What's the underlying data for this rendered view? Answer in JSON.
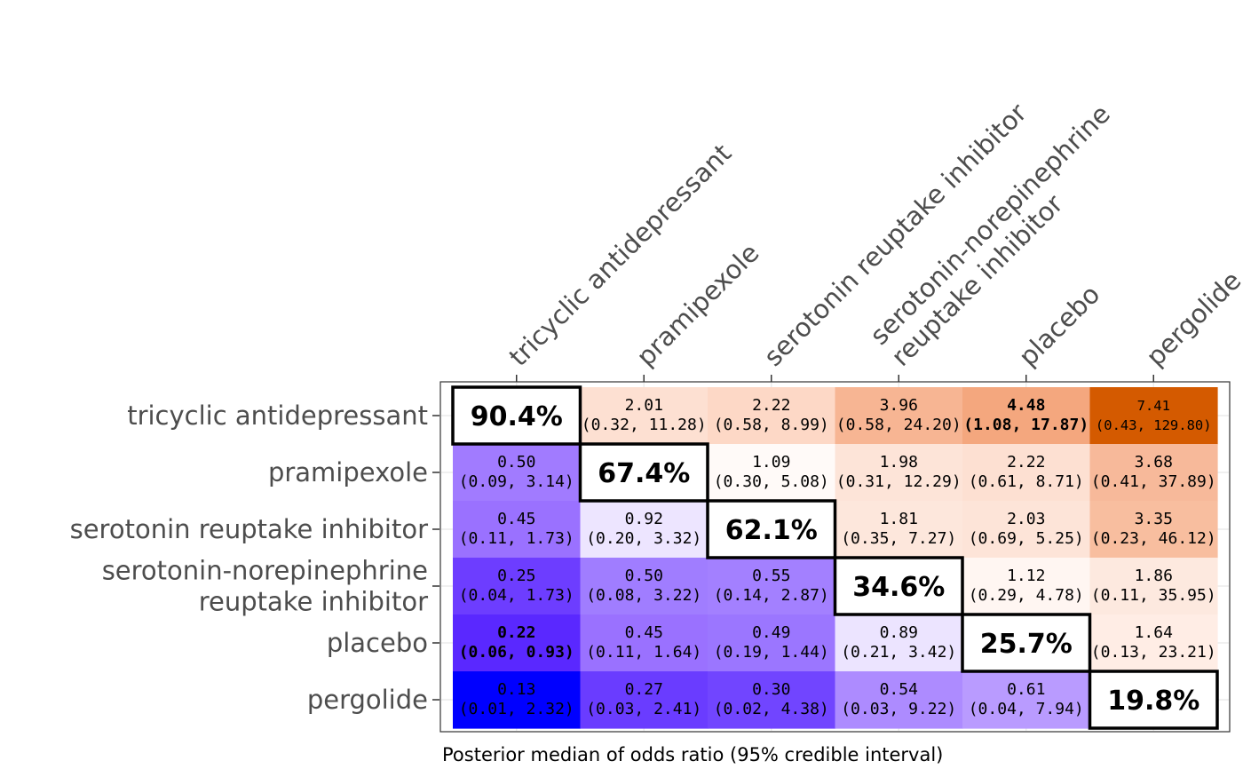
{
  "chart_data": {
    "type": "heatmap",
    "caption": "Posterior median of odds ratio (95% credible interval)",
    "columns": [
      [
        "tricyclic antidepressant"
      ],
      [
        "pramipexole"
      ],
      [
        "serotonin reuptake inhibitor"
      ],
      [
        "serotonin-norepinephrine",
        "reuptake inhibitor"
      ],
      [
        "placebo"
      ],
      [
        "pergolide"
      ]
    ],
    "rows": [
      [
        "tricyclic antidepressant"
      ],
      [
        "pramipexole"
      ],
      [
        "serotonin reuptake inhibitor"
      ],
      [
        "serotonin-norepinephrine",
        "reuptake inhibitor"
      ],
      [
        "placebo"
      ],
      [
        "pergolide"
      ]
    ],
    "diagonal": [
      "90.4%",
      "67.4%",
      "62.1%",
      "34.6%",
      "25.7%",
      "19.8%"
    ],
    "cells": [
      [
        null,
        {
          "median": "2.01",
          "ci": "(0.32, 11.28)"
        },
        {
          "median": "2.22",
          "ci": "(0.58, 8.99)"
        },
        {
          "median": "3.96",
          "ci": "(0.58, 24.20)"
        },
        {
          "median": "4.48",
          "ci": "(1.08, 17.87)",
          "bold": true
        },
        {
          "median": "7.41",
          "ci": "(0.43, 129.80)"
        }
      ],
      [
        {
          "median": "0.50",
          "ci": "(0.09, 3.14)"
        },
        null,
        {
          "median": "1.09",
          "ci": "(0.30, 5.08)"
        },
        {
          "median": "1.98",
          "ci": "(0.31, 12.29)"
        },
        {
          "median": "2.22",
          "ci": "(0.61, 8.71)"
        },
        {
          "median": "3.68",
          "ci": "(0.41, 37.89)"
        }
      ],
      [
        {
          "median": "0.45",
          "ci": "(0.11, 1.73)"
        },
        {
          "median": "0.92",
          "ci": "(0.20, 3.32)"
        },
        null,
        {
          "median": "1.81",
          "ci": "(0.35, 7.27)"
        },
        {
          "median": "2.03",
          "ci": "(0.69, 5.25)"
        },
        {
          "median": "3.35",
          "ci": "(0.23, 46.12)"
        }
      ],
      [
        {
          "median": "0.25",
          "ci": "(0.04, 1.73)"
        },
        {
          "median": "0.50",
          "ci": "(0.08, 3.22)"
        },
        {
          "median": "0.55",
          "ci": "(0.14, 2.87)"
        },
        null,
        {
          "median": "1.12",
          "ci": "(0.29, 4.78)"
        },
        {
          "median": "1.86",
          "ci": "(0.11, 35.95)"
        }
      ],
      [
        {
          "median": "0.22",
          "ci": "(0.06, 0.93)",
          "bold": true
        },
        {
          "median": "0.45",
          "ci": "(0.11, 1.64)"
        },
        {
          "median": "0.49",
          "ci": "(0.19, 1.44)"
        },
        {
          "median": "0.89",
          "ci": "(0.21, 3.42)"
        },
        null,
        {
          "median": "1.64",
          "ci": "(0.13, 23.21)"
        }
      ],
      [
        {
          "median": "0.13",
          "ci": "(0.01, 2.32)"
        },
        {
          "median": "0.27",
          "ci": "(0.03, 2.41)"
        },
        {
          "median": "0.30",
          "ci": "(0.02, 4.38)"
        },
        {
          "median": "0.54",
          "ci": "(0.03, 9.22)"
        },
        {
          "median": "0.61",
          "ci": "(0.04, 7.94)"
        },
        null
      ]
    ],
    "colors": {
      "low": "#0000ff",
      "mid": "#ffffff",
      "high": "#d45a00",
      "cell_fill": [
        [
          null,
          "#fde0d2",
          "#fdd8c6",
          "#f7b593",
          "#f4a77e",
          "#d45a00"
        ],
        [
          "#a17bff",
          null,
          "#fffaf8",
          "#fde4d8",
          "#fde0d2",
          "#f7b99a"
        ],
        [
          "#9a71ff",
          "#ede5ff",
          null,
          "#fde7dc",
          "#fde4d8",
          "#f8be9f"
        ],
        [
          "#6d3dff",
          "#a07dff",
          "#a380ff",
          null,
          "#fff6f2",
          "#fde9df"
        ],
        [
          "#5a28ff",
          "#9a71ff",
          "#9b76ff",
          "#ece4ff",
          null,
          "#ffede5"
        ],
        [
          "#0000ff",
          "#6a3cff",
          "#7145ff",
          "#ad8bff",
          "#b99bff",
          null
        ]
      ]
    }
  }
}
